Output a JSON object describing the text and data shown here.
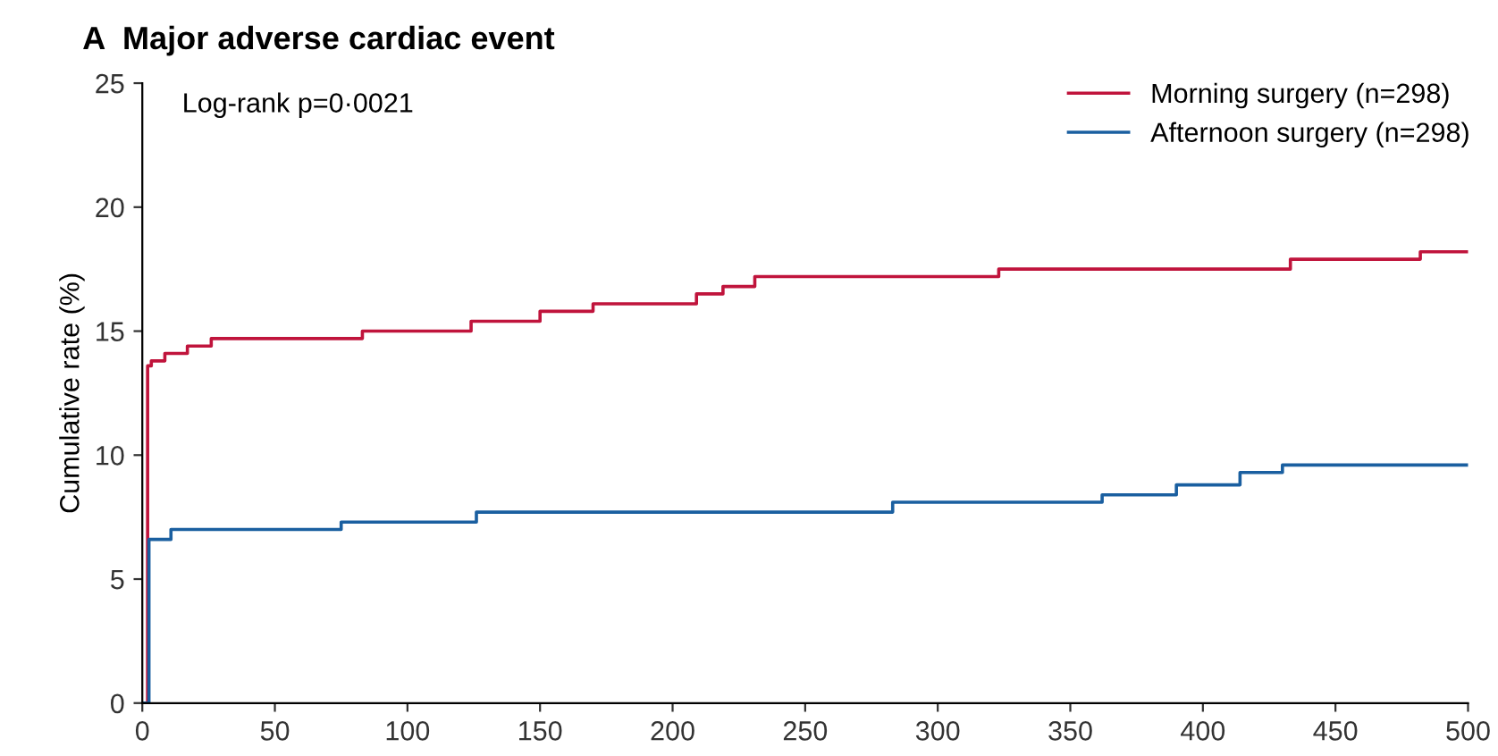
{
  "chart_data": {
    "type": "step",
    "title": "A  Major adverse cardiac event",
    "ylabel": "Cumulative rate (%)",
    "annotations": [
      "Log-rank p=0·0021"
    ],
    "series": [
      {
        "name": "Morning surgery (n=298)",
        "color": "#c0143c",
        "x": [
          0,
          2,
          3.4,
          8.5,
          17,
          26,
          83,
          124,
          150,
          170,
          209,
          219,
          231,
          323,
          433,
          482,
          500
        ],
        "values": [
          0,
          13.6,
          13.8,
          14.1,
          14.4,
          14.7,
          15.0,
          15.4,
          15.8,
          16.1,
          16.5,
          16.8,
          17.2,
          17.5,
          17.9,
          18.2,
          18.2
        ]
      },
      {
        "name": "Afternoon surgery (n=298)",
        "color": "#1a5fa0",
        "x": [
          0,
          2.5,
          10.8,
          75,
          126,
          283,
          362,
          390,
          414,
          430,
          500
        ],
        "values": [
          0,
          6.6,
          7.0,
          7.3,
          7.7,
          8.1,
          8.4,
          8.8,
          9.3,
          9.6,
          9.6
        ]
      }
    ],
    "xlim": [
      0,
      500
    ],
    "xticks": [
      0,
      50,
      100,
      150,
      200,
      250,
      300,
      350,
      400,
      450,
      500
    ],
    "ylim": [
      0,
      25
    ],
    "yticks": [
      0,
      5,
      10,
      15,
      20,
      25
    ],
    "grid": false,
    "legend": "top right",
    "marker": "none",
    "line_style": "solid"
  }
}
